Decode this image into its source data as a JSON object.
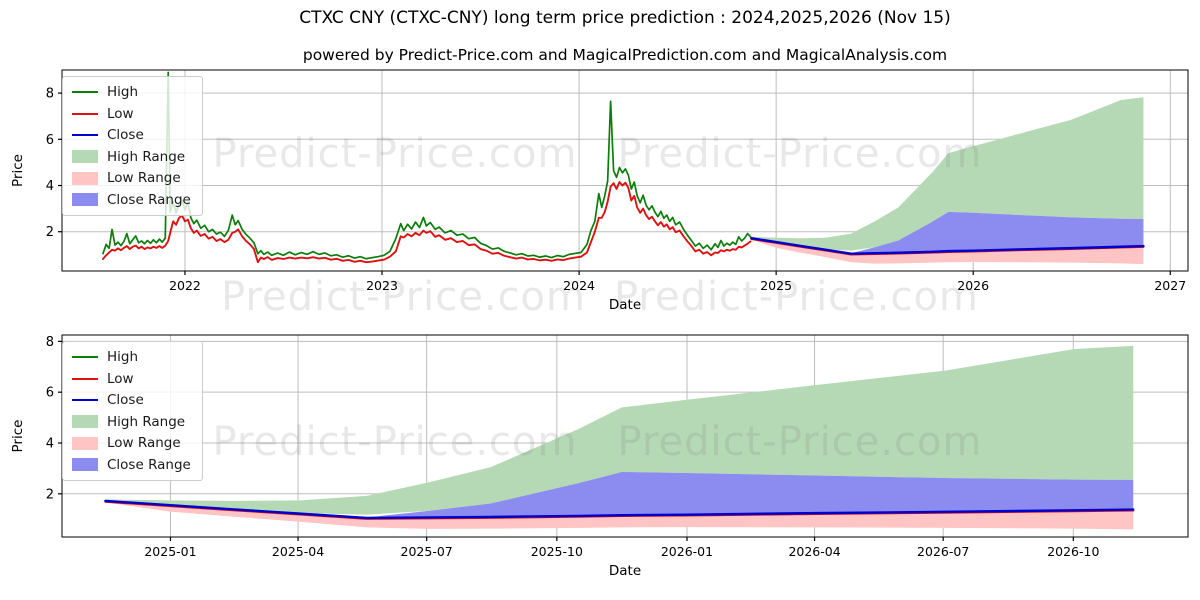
{
  "title": "CTXC CNY (CTXC-CNY) long term price prediction : 2024,2025,2026 (Nov 15)",
  "subtitle": "powered by Predict-Price.com and MagicalPrediction.com and MagicalAnalysis.com",
  "watermark": {
    "text": "Predict-Price.com",
    "color": "rgba(115,115,115,0.16)"
  },
  "colors": {
    "high": "#0a7d0a",
    "low": "#dd1111",
    "close": "#0000cc",
    "high_range": "#b5d9b5",
    "low_range": "#ffc4c4",
    "close_range": "#8c8cf0",
    "grid": "#bdbdbd",
    "spine": "#000000",
    "text": "#000000"
  },
  "legend_items": [
    {
      "label": "High",
      "swatch": "line",
      "color_key": "high"
    },
    {
      "label": "Low",
      "swatch": "line",
      "color_key": "low"
    },
    {
      "label": "Close",
      "swatch": "line",
      "color_key": "close"
    },
    {
      "label": "High Range",
      "swatch": "patch",
      "color_key": "high_range"
    },
    {
      "label": "Low Range",
      "swatch": "patch",
      "color_key": "low_range"
    },
    {
      "label": "Close Range",
      "swatch": "patch",
      "color_key": "close_range"
    }
  ],
  "chart_data": [
    {
      "type": "line",
      "panel": "top-history-and-forecast",
      "xlabel": "Date",
      "ylabel": "Price",
      "xlim_years": [
        2021.376,
        2027.09
      ],
      "ylim": [
        0.3,
        9.0
      ],
      "xticks": [
        {
          "v": 2022,
          "label": "2022"
        },
        {
          "v": 2023,
          "label": "2023"
        },
        {
          "v": 2024,
          "label": "2024"
        },
        {
          "v": 2025,
          "label": "2025"
        },
        {
          "v": 2026,
          "label": "2026"
        },
        {
          "v": 2027,
          "label": "2027"
        }
      ],
      "yticks": [
        2,
        4,
        6,
        8
      ],
      "grid": true,
      "legend_position": "upper left",
      "legend": [
        "High",
        "Low",
        "Close",
        "High Range",
        "Low Range",
        "Close Range"
      ],
      "history_high_low": [
        [
          2021.584,
          1.05,
          0.82
        ],
        [
          2021.6,
          1.45,
          0.98
        ],
        [
          2021.615,
          1.28,
          1.1
        ],
        [
          2021.63,
          2.1,
          1.22
        ],
        [
          2021.645,
          1.42,
          1.18
        ],
        [
          2021.66,
          1.55,
          1.28
        ],
        [
          2021.675,
          1.4,
          1.2
        ],
        [
          2021.69,
          1.58,
          1.3
        ],
        [
          2021.705,
          1.92,
          1.38
        ],
        [
          2021.72,
          1.48,
          1.25
        ],
        [
          2021.735,
          1.65,
          1.35
        ],
        [
          2021.75,
          1.82,
          1.4
        ],
        [
          2021.765,
          1.52,
          1.28
        ],
        [
          2021.78,
          1.6,
          1.35
        ],
        [
          2021.795,
          1.48,
          1.25
        ],
        [
          2021.81,
          1.62,
          1.32
        ],
        [
          2021.825,
          1.5,
          1.28
        ],
        [
          2021.84,
          1.65,
          1.35
        ],
        [
          2021.855,
          1.52,
          1.3
        ],
        [
          2021.87,
          1.68,
          1.38
        ],
        [
          2021.885,
          1.55,
          1.3
        ],
        [
          2021.9,
          1.72,
          1.4
        ],
        [
          2021.915,
          8.9,
          1.6
        ],
        [
          2021.925,
          2.85,
          1.95
        ],
        [
          2021.94,
          3.3,
          2.45
        ],
        [
          2021.955,
          2.8,
          2.3
        ],
        [
          2021.97,
          3.25,
          2.6
        ],
        [
          2021.985,
          3.38,
          2.7
        ],
        [
          2022.0,
          2.95,
          2.45
        ],
        [
          2022.015,
          3.3,
          2.52
        ],
        [
          2022.03,
          2.6,
          2.15
        ],
        [
          2022.045,
          2.35,
          1.95
        ],
        [
          2022.06,
          2.5,
          2.05
        ],
        [
          2022.08,
          2.15,
          1.82
        ],
        [
          2022.1,
          2.28,
          1.9
        ],
        [
          2022.12,
          2.0,
          1.7
        ],
        [
          2022.14,
          2.1,
          1.78
        ],
        [
          2022.16,
          1.9,
          1.6
        ],
        [
          2022.18,
          1.98,
          1.68
        ],
        [
          2022.2,
          1.8,
          1.55
        ],
        [
          2022.22,
          2.05,
          1.65
        ],
        [
          2022.24,
          2.72,
          1.95
        ],
        [
          2022.255,
          2.3,
          2.0
        ],
        [
          2022.27,
          2.48,
          2.1
        ],
        [
          2022.29,
          2.1,
          1.8
        ],
        [
          2022.31,
          1.88,
          1.6
        ],
        [
          2022.33,
          1.72,
          1.45
        ],
        [
          2022.35,
          1.52,
          1.25
        ],
        [
          2022.37,
          1.05,
          0.68
        ],
        [
          2022.385,
          1.18,
          0.88
        ],
        [
          2022.4,
          1.02,
          0.82
        ],
        [
          2022.42,
          1.12,
          0.9
        ],
        [
          2022.44,
          0.98,
          0.78
        ],
        [
          2022.47,
          1.08,
          0.86
        ],
        [
          2022.5,
          0.98,
          0.82
        ],
        [
          2022.53,
          1.12,
          0.88
        ],
        [
          2022.56,
          1.0,
          0.84
        ],
        [
          2022.59,
          1.1,
          0.88
        ],
        [
          2022.62,
          1.02,
          0.85
        ],
        [
          2022.65,
          1.14,
          0.9
        ],
        [
          2022.68,
          1.02,
          0.84
        ],
        [
          2022.71,
          1.08,
          0.87
        ],
        [
          2022.74,
          0.96,
          0.79
        ],
        [
          2022.77,
          1.0,
          0.83
        ],
        [
          2022.8,
          0.9,
          0.74
        ],
        [
          2022.83,
          0.96,
          0.78
        ],
        [
          2022.86,
          0.86,
          0.7
        ],
        [
          2022.89,
          0.92,
          0.74
        ],
        [
          2022.92,
          0.83,
          0.68
        ],
        [
          2022.95,
          0.88,
          0.71
        ],
        [
          2022.98,
          0.92,
          0.75
        ],
        [
          2023.01,
          0.98,
          0.79
        ],
        [
          2023.04,
          1.15,
          0.92
        ],
        [
          2023.07,
          1.7,
          1.15
        ],
        [
          2023.095,
          2.35,
          1.8
        ],
        [
          2023.11,
          2.05,
          1.75
        ],
        [
          2023.13,
          2.32,
          1.9
        ],
        [
          2023.15,
          2.12,
          1.8
        ],
        [
          2023.17,
          2.42,
          1.95
        ],
        [
          2023.19,
          2.18,
          1.85
        ],
        [
          2023.21,
          2.62,
          2.05
        ],
        [
          2023.225,
          2.25,
          1.95
        ],
        [
          2023.245,
          2.4,
          2.02
        ],
        [
          2023.27,
          2.1,
          1.78
        ],
        [
          2023.29,
          2.2,
          1.85
        ],
        [
          2023.32,
          1.95,
          1.65
        ],
        [
          2023.35,
          2.05,
          1.72
        ],
        [
          2023.38,
          1.85,
          1.55
        ],
        [
          2023.41,
          1.9,
          1.6
        ],
        [
          2023.44,
          1.7,
          1.42
        ],
        [
          2023.47,
          1.75,
          1.45
        ],
        [
          2023.5,
          1.5,
          1.25
        ],
        [
          2023.53,
          1.4,
          1.18
        ],
        [
          2023.56,
          1.25,
          1.05
        ],
        [
          2023.59,
          1.3,
          1.08
        ],
        [
          2023.62,
          1.15,
          0.96
        ],
        [
          2023.65,
          1.08,
          0.9
        ],
        [
          2023.68,
          1.0,
          0.84
        ],
        [
          2023.71,
          1.05,
          0.88
        ],
        [
          2023.74,
          0.95,
          0.8
        ],
        [
          2023.77,
          0.98,
          0.82
        ],
        [
          2023.8,
          0.9,
          0.76
        ],
        [
          2023.83,
          0.95,
          0.79
        ],
        [
          2023.86,
          0.88,
          0.74
        ],
        [
          2023.89,
          0.97,
          0.8
        ],
        [
          2023.92,
          0.92,
          0.77
        ],
        [
          2023.95,
          1.02,
          0.84
        ],
        [
          2023.98,
          1.06,
          0.88
        ],
        [
          2024.01,
          1.1,
          0.92
        ],
        [
          2024.04,
          1.45,
          1.1
        ],
        [
          2024.06,
          2.05,
          1.55
        ],
        [
          2024.08,
          2.45,
          2.0
        ],
        [
          2024.1,
          3.65,
          2.6
        ],
        [
          2024.115,
          3.05,
          2.6
        ],
        [
          2024.13,
          3.55,
          2.85
        ],
        [
          2024.145,
          4.2,
          3.3
        ],
        [
          2024.16,
          7.65,
          3.95
        ],
        [
          2024.175,
          4.65,
          4.1
        ],
        [
          2024.19,
          4.35,
          3.85
        ],
        [
          2024.205,
          4.78,
          4.15
        ],
        [
          2024.22,
          4.55,
          4.0
        ],
        [
          2024.235,
          4.72,
          4.12
        ],
        [
          2024.25,
          4.45,
          3.9
        ],
        [
          2024.265,
          3.85,
          3.35
        ],
        [
          2024.28,
          4.15,
          3.55
        ],
        [
          2024.295,
          3.55,
          3.05
        ],
        [
          2024.31,
          3.25,
          2.82
        ],
        [
          2024.325,
          3.58,
          3.0
        ],
        [
          2024.34,
          3.15,
          2.72
        ],
        [
          2024.355,
          2.95,
          2.55
        ],
        [
          2024.37,
          3.12,
          2.65
        ],
        [
          2024.385,
          2.85,
          2.45
        ],
        [
          2024.4,
          2.65,
          2.28
        ],
        [
          2024.415,
          2.88,
          2.42
        ],
        [
          2024.43,
          2.58,
          2.22
        ],
        [
          2024.445,
          2.72,
          2.32
        ],
        [
          2024.46,
          2.45,
          2.1
        ],
        [
          2024.475,
          2.62,
          2.2
        ],
        [
          2024.49,
          2.3,
          1.98
        ],
        [
          2024.51,
          2.42,
          2.05
        ],
        [
          2024.53,
          2.1,
          1.8
        ],
        [
          2024.55,
          1.85,
          1.58
        ],
        [
          2024.57,
          1.62,
          1.38
        ],
        [
          2024.59,
          1.38,
          1.15
        ],
        [
          2024.61,
          1.5,
          1.22
        ],
        [
          2024.63,
          1.28,
          1.05
        ],
        [
          2024.65,
          1.42,
          1.12
        ],
        [
          2024.67,
          1.22,
          0.98
        ],
        [
          2024.69,
          1.48,
          1.1
        ],
        [
          2024.705,
          1.32,
          1.08
        ],
        [
          2024.72,
          1.62,
          1.2
        ],
        [
          2024.735,
          1.38,
          1.15
        ],
        [
          2024.75,
          1.5,
          1.22
        ],
        [
          2024.765,
          1.42,
          1.18
        ],
        [
          2024.78,
          1.55,
          1.25
        ],
        [
          2024.795,
          1.45,
          1.22
        ],
        [
          2024.81,
          1.78,
          1.35
        ],
        [
          2024.825,
          1.6,
          1.32
        ],
        [
          2024.84,
          1.72,
          1.4
        ],
        [
          2024.855,
          1.92,
          1.48
        ],
        [
          2024.87,
          1.78,
          1.58
        ]
      ],
      "prediction": {
        "x": [
          2024.874,
          2025.0,
          2025.12,
          2025.25,
          2025.38,
          2025.5,
          2025.62,
          2025.79,
          2025.874,
          2026.0,
          2026.25,
          2026.5,
          2026.75,
          2026.864
        ],
        "close": [
          1.72,
          1.55,
          1.39,
          1.22,
          1.05,
          1.07,
          1.09,
          1.13,
          1.16,
          1.18,
          1.24,
          1.29,
          1.35,
          1.38
        ],
        "high_range_top": [
          1.78,
          1.74,
          1.72,
          1.74,
          1.92,
          2.45,
          3.05,
          4.55,
          5.4,
          5.7,
          6.28,
          6.85,
          7.7,
          7.82
        ],
        "green_band_bottom": [
          1.72,
          1.5,
          1.36,
          1.24,
          1.18,
          1.33,
          1.62,
          2.42,
          2.86,
          2.82,
          2.72,
          2.62,
          2.56,
          2.55
        ],
        "close_range_top": [
          1.72,
          1.55,
          1.39,
          1.22,
          1.07,
          1.33,
          1.62,
          2.42,
          2.86,
          2.82,
          2.72,
          2.62,
          2.56,
          2.55
        ],
        "low_range_bottom": [
          1.66,
          1.3,
          1.1,
          0.9,
          0.68,
          0.62,
          0.63,
          0.66,
          0.68,
          0.69,
          0.68,
          0.66,
          0.63,
          0.6
        ]
      }
    },
    {
      "type": "line",
      "panel": "bottom-forecast-only",
      "xlabel": "Date",
      "ylabel": "Price",
      "xlim_years": [
        2024.79,
        2026.97
      ],
      "ylim": [
        0.3,
        8.25
      ],
      "xticks": [
        {
          "v": 2025.0,
          "label": "2025-01"
        },
        {
          "v": 2025.247,
          "label": "2025-04"
        },
        {
          "v": 2025.496,
          "label": "2025-07"
        },
        {
          "v": 2025.748,
          "label": "2025-10"
        },
        {
          "v": 2026.0,
          "label": "2026-01"
        },
        {
          "v": 2026.247,
          "label": "2026-04"
        },
        {
          "v": 2026.496,
          "label": "2026-07"
        },
        {
          "v": 2026.748,
          "label": "2026-10"
        }
      ],
      "yticks": [
        2,
        4,
        6,
        8
      ],
      "grid": true,
      "legend_position": "upper left",
      "legend": [
        "High",
        "Low",
        "Close",
        "High Range",
        "Low Range",
        "Close Range"
      ],
      "prediction": {
        "x": [
          2024.874,
          2025.0,
          2025.12,
          2025.25,
          2025.38,
          2025.5,
          2025.62,
          2025.79,
          2025.874,
          2026.0,
          2026.25,
          2026.5,
          2026.75,
          2026.864
        ],
        "close": [
          1.72,
          1.55,
          1.39,
          1.22,
          1.05,
          1.07,
          1.09,
          1.13,
          1.16,
          1.18,
          1.24,
          1.29,
          1.35,
          1.38
        ],
        "high_range_top": [
          1.78,
          1.74,
          1.72,
          1.74,
          1.92,
          2.45,
          3.05,
          4.55,
          5.4,
          5.7,
          6.28,
          6.85,
          7.7,
          7.82
        ],
        "green_band_bottom": [
          1.72,
          1.5,
          1.36,
          1.24,
          1.18,
          1.33,
          1.62,
          2.42,
          2.86,
          2.82,
          2.72,
          2.62,
          2.56,
          2.55
        ],
        "close_range_top": [
          1.72,
          1.55,
          1.39,
          1.22,
          1.07,
          1.33,
          1.62,
          2.42,
          2.86,
          2.82,
          2.72,
          2.62,
          2.56,
          2.55
        ],
        "low_range_bottom": [
          1.66,
          1.3,
          1.1,
          0.9,
          0.68,
          0.62,
          0.63,
          0.66,
          0.68,
          0.69,
          0.68,
          0.66,
          0.63,
          0.6
        ]
      }
    }
  ]
}
